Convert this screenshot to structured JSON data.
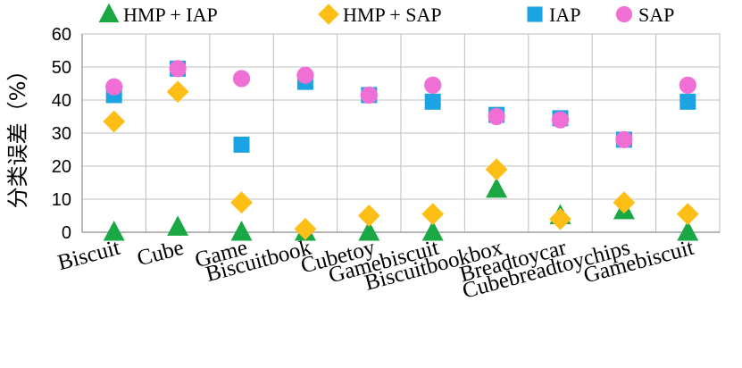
{
  "chart_data": {
    "type": "scatter",
    "title": "",
    "xlabel": "",
    "ylabel": "分类误差（%）",
    "ylim": [
      0,
      60
    ],
    "yticks": [
      0,
      10,
      20,
      30,
      40,
      50,
      60
    ],
    "grid": true,
    "legend_position": "top",
    "categories": [
      "Biscuit",
      "Cube",
      "Game",
      "Biscuitbook",
      "Cubetoy",
      "Gamebiscuit",
      "Biscuitbookbox",
      "Breadtoycar",
      "Cubebreadtoychips",
      "Gamebiscuit"
    ],
    "series": [
      {
        "name": "HMP + IAP",
        "marker": "triangle-icon",
        "color": "#1aa845",
        "values": [
          0,
          1.5,
          0,
          0,
          0,
          0,
          13,
          5,
          6.5,
          0
        ]
      },
      {
        "name": "HMP + SAP",
        "marker": "diamond-icon",
        "color": "#fdbf16",
        "values": [
          33.5,
          42.5,
          9,
          1,
          5,
          5.5,
          19,
          4,
          9,
          5.5
        ]
      },
      {
        "name": "IAP",
        "marker": "square-icon",
        "color": "#1ca3e2",
        "values": [
          41.5,
          49.5,
          26.5,
          45.5,
          41.5,
          39.5,
          35.5,
          34.5,
          28,
          39.5
        ]
      },
      {
        "name": "SAP",
        "marker": "circle-icon",
        "color": "#f06fd4",
        "values": [
          44,
          49.5,
          46.5,
          47.5,
          41.5,
          44.5,
          35,
          34,
          28,
          44.5
        ]
      }
    ]
  }
}
